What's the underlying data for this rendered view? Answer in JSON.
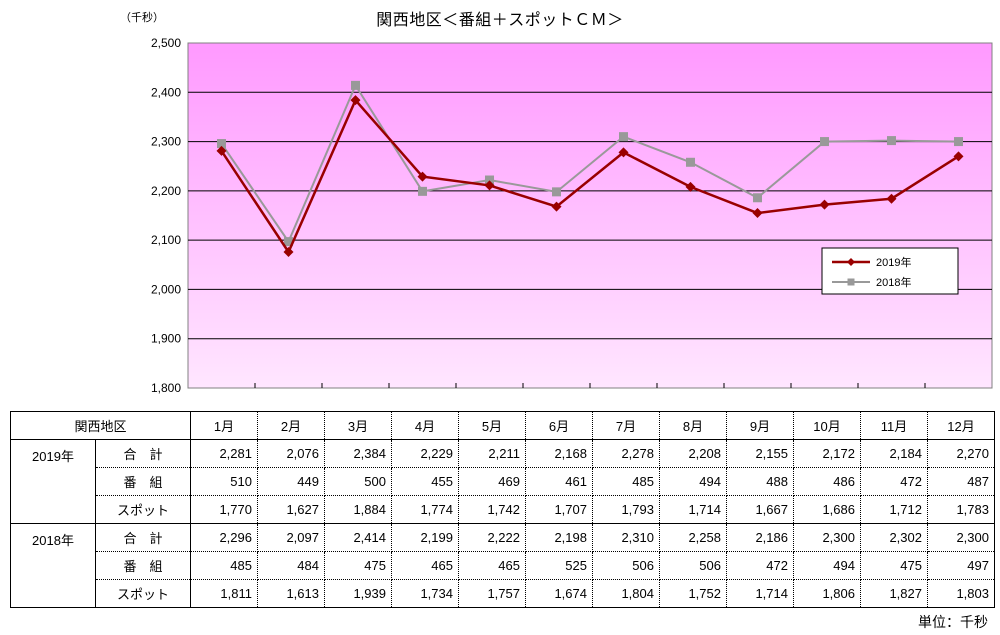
{
  "chart_data": {
    "type": "line",
    "title": "関西地区＜番組＋スポットＣＭ＞",
    "y_unit": "（千秒）",
    "ylim": [
      1800,
      2500
    ],
    "yticks": [
      "1,800",
      "1,900",
      "2,000",
      "2,100",
      "2,200",
      "2,300",
      "2,400",
      "2,500"
    ],
    "categories": [
      "1月",
      "2月",
      "3月",
      "4月",
      "5月",
      "6月",
      "7月",
      "8月",
      "9月",
      "10月",
      "11月",
      "12月"
    ],
    "series": [
      {
        "name": "2019年",
        "color": "#990000",
        "marker": "diamond",
        "values": [
          2281,
          2076,
          2384,
          2229,
          2211,
          2168,
          2278,
          2208,
          2155,
          2172,
          2184,
          2270
        ]
      },
      {
        "name": "2018年",
        "color": "#999999",
        "marker": "square",
        "values": [
          2296,
          2097,
          2414,
          2199,
          2222,
          2198,
          2310,
          2258,
          2186,
          2300,
          2302,
          2300
        ]
      }
    ],
    "legend_position": "right",
    "grid": true,
    "plot_gradient": [
      "#ff99ff",
      "#ffe6ff"
    ]
  },
  "table": {
    "header_label": "関西地区",
    "months": [
      "1月",
      "2月",
      "3月",
      "4月",
      "5月",
      "6月",
      "7月",
      "8月",
      "9月",
      "10月",
      "11月",
      "12月"
    ],
    "groups": [
      {
        "year": "2019年",
        "rows": [
          {
            "label": "合　計",
            "values": [
              "2,281",
              "2,076",
              "2,384",
              "2,229",
              "2,211",
              "2,168",
              "2,278",
              "2,208",
              "2,155",
              "2,172",
              "2,184",
              "2,270"
            ]
          },
          {
            "label": "番　組",
            "values": [
              "510",
              "449",
              "500",
              "455",
              "469",
              "461",
              "485",
              "494",
              "488",
              "486",
              "472",
              "487"
            ]
          },
          {
            "label": "スポット",
            "values": [
              "1,770",
              "1,627",
              "1,884",
              "1,774",
              "1,742",
              "1,707",
              "1,793",
              "1,714",
              "1,667",
              "1,686",
              "1,712",
              "1,783"
            ]
          }
        ]
      },
      {
        "year": "2018年",
        "rows": [
          {
            "label": "合　計",
            "values": [
              "2,296",
              "2,097",
              "2,414",
              "2,199",
              "2,222",
              "2,198",
              "2,310",
              "2,258",
              "2,186",
              "2,300",
              "2,302",
              "2,300"
            ]
          },
          {
            "label": "番　組",
            "values": [
              "485",
              "484",
              "475",
              "465",
              "465",
              "525",
              "506",
              "506",
              "472",
              "494",
              "475",
              "497"
            ]
          },
          {
            "label": "スポット",
            "values": [
              "1,811",
              "1,613",
              "1,939",
              "1,734",
              "1,757",
              "1,674",
              "1,804",
              "1,752",
              "1,714",
              "1,806",
              "1,827",
              "1,803"
            ]
          }
        ]
      }
    ],
    "unit_note": "単位：千秒"
  }
}
